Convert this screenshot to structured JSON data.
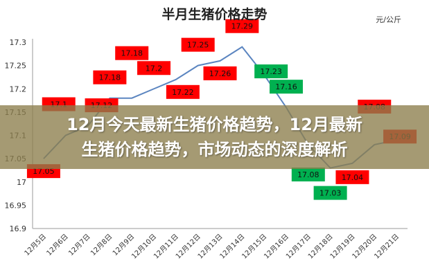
{
  "chart_data": {
    "type": "line",
    "title": "半月生猪价格走势",
    "unit_label": "元/公斤",
    "categories": [
      "12月5日",
      "12月6日",
      "12月7日",
      "12月8日",
      "12月9日",
      "12月10日",
      "12月11日",
      "12月12日",
      "12月13日",
      "12月14日",
      "12月15日",
      "12月16日",
      "12月17日",
      "12月18日",
      "12月19日",
      "12月20日",
      "12月21日"
    ],
    "values": [
      17.05,
      17.1,
      17.12,
      17.18,
      17.18,
      17.2,
      17.22,
      17.25,
      17.26,
      17.29,
      17.23,
      17.16,
      17.08,
      17.03,
      17.04,
      17.08,
      17.09
    ],
    "ylim": [
      16.9,
      17.3
    ],
    "yticks": [
      "16.9",
      "16.95",
      "17",
      "17.05",
      "17.1",
      "17.15",
      "17.2",
      "17.25",
      "17.3"
    ],
    "grid": false,
    "line_color": "#5b85c0",
    "up_label_color": "#ff0000",
    "down_label_color": "#00b050"
  },
  "banner": {
    "line1": "12月今天最新生猪价格趋势，12月最新",
    "line2": "生猪价格趋势，市场动态的深度解析"
  }
}
